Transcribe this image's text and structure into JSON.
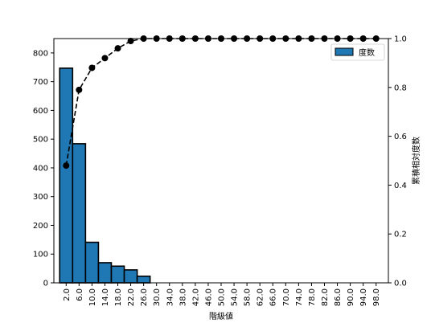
{
  "chart_data": {
    "type": "bar",
    "title": "",
    "xlabel": "階級値",
    "ylabel": "",
    "y2label": "累積相対度数",
    "categories": [
      "2.0",
      "6.0",
      "10.0",
      "14.0",
      "18.0",
      "22.0",
      "26.0",
      "30.0",
      "34.0",
      "38.0",
      "42.0",
      "46.0",
      "50.0",
      "54.0",
      "58.0",
      "62.0",
      "66.0",
      "70.0",
      "74.0",
      "78.0",
      "82.0",
      "86.0",
      "90.0",
      "94.0",
      "98.0"
    ],
    "series": [
      {
        "name": "度数",
        "kind": "bar",
        "axis": "left",
        "color": "#1f77b4",
        "values": [
          747,
          484,
          141,
          70,
          58,
          45,
          23,
          0,
          0,
          0,
          0,
          0,
          0,
          0,
          0,
          0,
          0,
          0,
          0,
          0,
          0,
          0,
          0,
          0,
          0
        ]
      },
      {
        "kind": "line",
        "axis": "right",
        "color": "#000000",
        "line_style": "dashed",
        "marker": "circle",
        "values": [
          0.48,
          0.79,
          0.88,
          0.92,
          0.96,
          0.99,
          1.0,
          1.0,
          1.0,
          1.0,
          1.0,
          1.0,
          1.0,
          1.0,
          1.0,
          1.0,
          1.0,
          1.0,
          1.0,
          1.0,
          1.0,
          1.0,
          1.0,
          1.0,
          1.0
        ]
      }
    ],
    "ylim": [
      0,
      850
    ],
    "y2lim": [
      0,
      1.0
    ],
    "yticks": [
      "0",
      "100",
      "200",
      "300",
      "400",
      "500",
      "600",
      "700",
      "800"
    ],
    "y2ticks": [
      "0.0",
      "0.2",
      "0.4",
      "0.6",
      "0.8",
      "1.0"
    ],
    "legend": {
      "position": "top-right",
      "label": "度数"
    },
    "grid": false
  }
}
